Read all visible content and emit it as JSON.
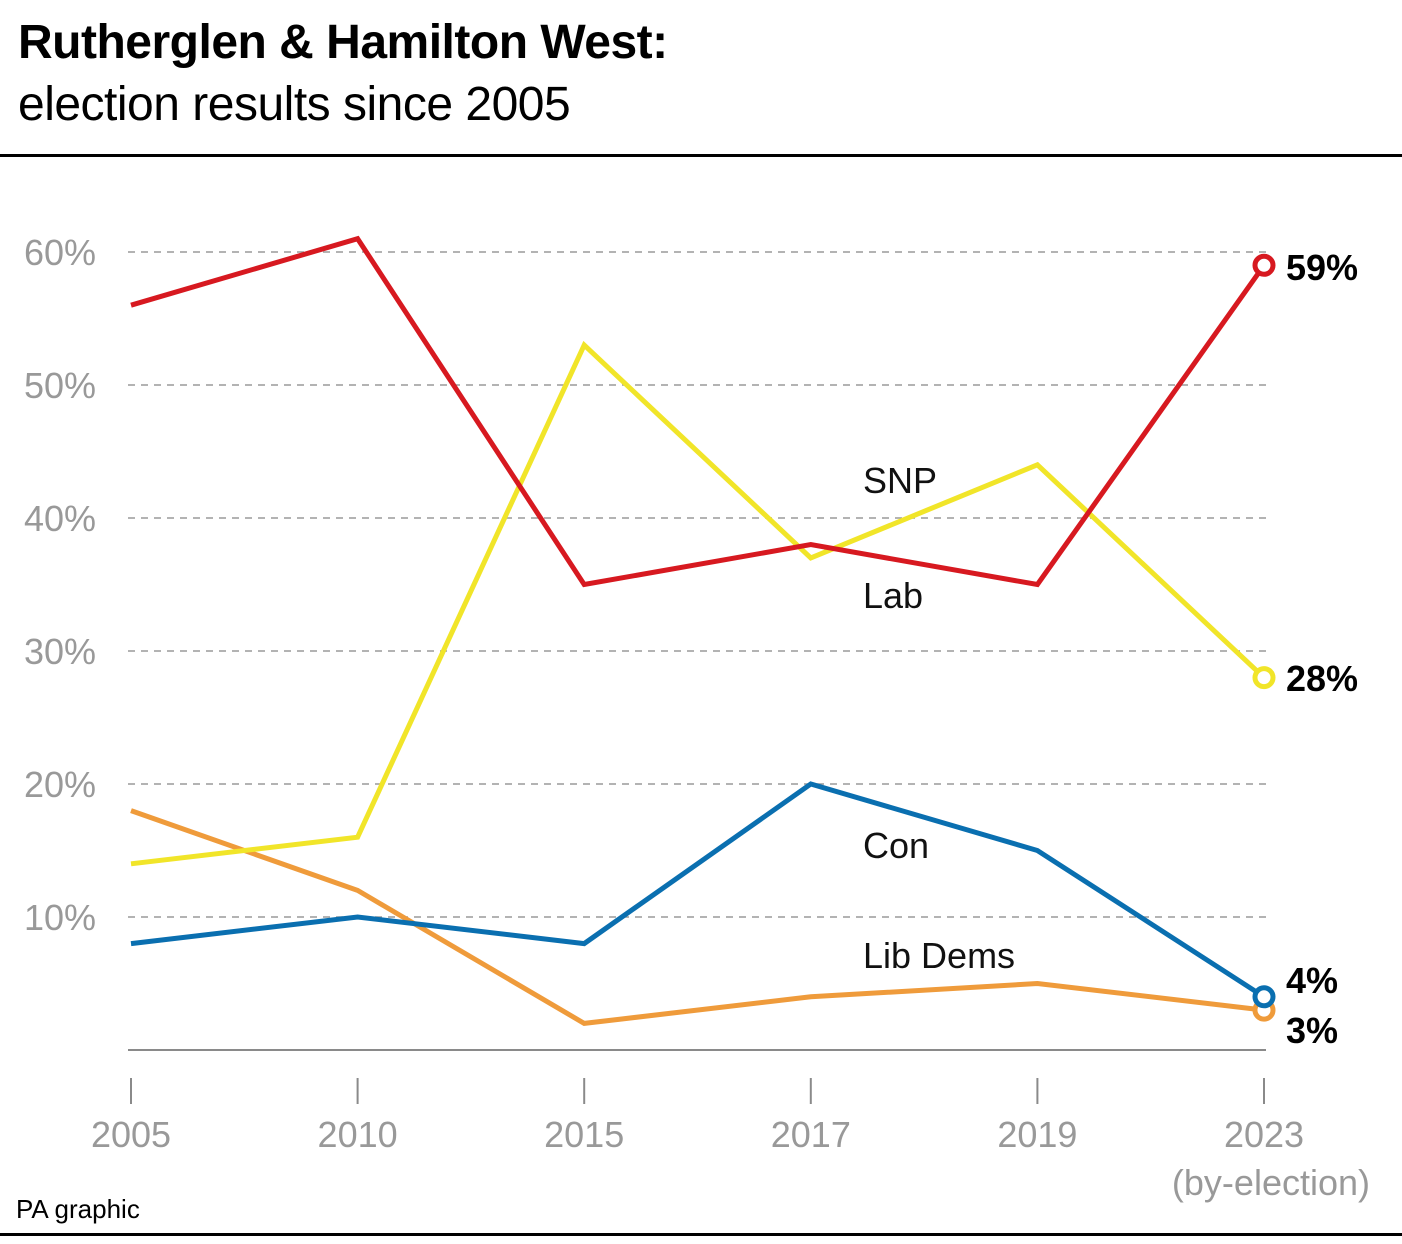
{
  "title": "Rutherglen & Hamilton West:",
  "subtitle": "election results since 2005",
  "credit": "PA graphic",
  "chart_data": {
    "type": "line",
    "categories": [
      "2005",
      "2010",
      "2015",
      "2017",
      "2019",
      "2023"
    ],
    "x_sublabels": [
      "",
      "",
      "",
      "",
      "",
      "(by-election)"
    ],
    "y_ticks": [
      "10%",
      "20%",
      "30%",
      "40%",
      "50%",
      "60%"
    ],
    "y_tick_values": [
      10,
      20,
      30,
      40,
      50,
      60
    ],
    "ylim": [
      0,
      60
    ],
    "grid": true,
    "series": [
      {
        "name": "Lab",
        "color": "#d71920",
        "values": [
          56,
          61,
          35,
          38,
          35,
          59
        ],
        "end_label": "59%"
      },
      {
        "name": "SNP",
        "color": "#f1e529",
        "values": [
          14,
          16,
          53,
          37,
          44,
          28
        ],
        "end_label": "28%"
      },
      {
        "name": "Con",
        "color": "#0a6fb0",
        "values": [
          8,
          10,
          8,
          20,
          15,
          4
        ],
        "end_label": "4%"
      },
      {
        "name": "Lib Dems",
        "color": "#ef9b3b",
        "values": [
          18,
          12,
          2,
          4,
          5,
          3
        ],
        "end_label": "3%"
      }
    ]
  }
}
